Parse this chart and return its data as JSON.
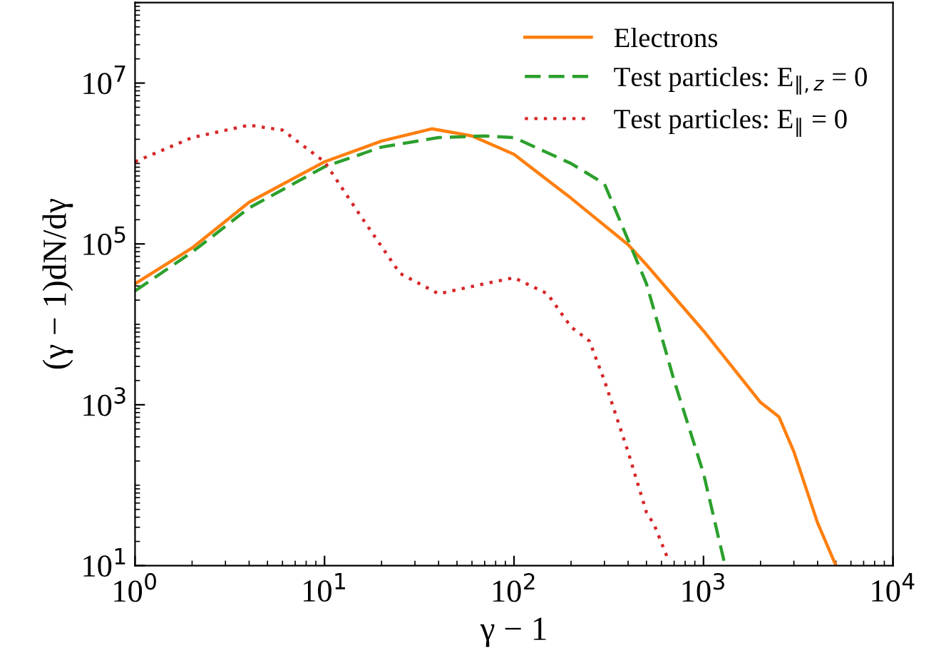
{
  "chart_data": {
    "type": "line",
    "xlabel": "γ − 1",
    "ylabel": "(γ − 1)dN/dγ",
    "log": "xy",
    "xlim": [
      1,
      10000
    ],
    "ylim": [
      10,
      100000000
    ],
    "xticks": [
      {
        "value": 1,
        "label": "10$^{0}$"
      },
      {
        "value": 10,
        "label": "10$^{1}$"
      },
      {
        "value": 100,
        "label": "10$^{2}$"
      },
      {
        "value": 1000,
        "label": "10$^{3}$"
      },
      {
        "value": 10000,
        "label": "10$^{4}$"
      }
    ],
    "yticks": [
      {
        "value": 10,
        "label": "10$^{1}$"
      },
      {
        "value": 1000,
        "label": "10$^{3}$"
      },
      {
        "value": 100000,
        "label": "10$^{5}$"
      },
      {
        "value": 10000000,
        "label": "10$^{7}$"
      }
    ],
    "grid": false,
    "legend": "top right",
    "series": [
      {
        "name": "Electrons",
        "color": "#ff7f0e",
        "line_style": "solid",
        "x": [
          1,
          2,
          4,
          10,
          20,
          37,
          60,
          100,
          200,
          400,
          500,
          1000,
          2000,
          2500,
          3000,
          4000,
          5000
        ],
        "values": [
          32000,
          89000,
          330000,
          1050000,
          1900000,
          2700000,
          2200000,
          1300000,
          370000,
          98000,
          55000,
          8300,
          1070,
          710,
          260,
          34,
          10
        ]
      },
      {
        "name": "Test particles: E$_{∥,z}$ = 0",
        "color": "#2ca02c",
        "line_style": "dashed",
        "x": [
          1,
          2,
          4,
          10,
          20,
          40,
          70,
          100,
          200,
          300,
          500,
          700,
          1000,
          1300
        ],
        "values": [
          26000,
          79000,
          280000,
          910000,
          1600000,
          2100000,
          2200000,
          2100000,
          1000000,
          560000,
          32000,
          2000,
          140,
          10
        ]
      },
      {
        "name": "Test particles: E$_{∥}$ = 0",
        "color": "#d62728",
        "line_style": "dotted",
        "x": [
          1,
          2,
          4,
          6,
          10,
          15,
          25,
          40,
          70,
          100,
          150,
          200,
          250,
          300,
          400,
          500,
          550,
          650
        ],
        "values": [
          1050000,
          2100000,
          3000000,
          2600000,
          1050000,
          250000,
          43000,
          24000,
          32000,
          38000,
          24000,
          9300,
          6200,
          2000,
          260,
          46,
          32,
          12
        ]
      }
    ]
  }
}
